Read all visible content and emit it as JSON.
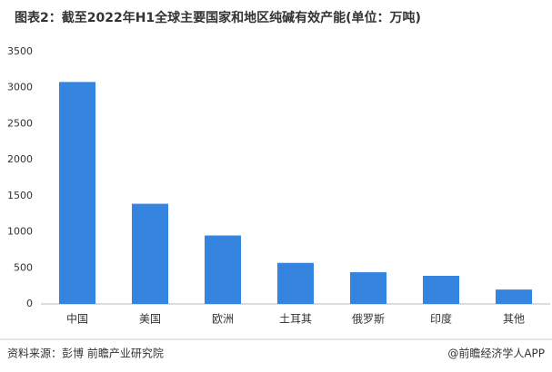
{
  "chart_data": {
    "type": "bar",
    "title": "图表2：截至2022年H1全球主要国家和地区纯碱有效产能(单位：万吨)",
    "categories": [
      "中国",
      "美国",
      "欧洲",
      "土耳其",
      "俄罗斯",
      "印度",
      "其他"
    ],
    "values": [
      3080,
      1390,
      950,
      570,
      440,
      390,
      200
    ],
    "color": "#3484e0",
    "ylim": [
      0,
      3500
    ],
    "yticks": [
      0,
      500,
      1000,
      1500,
      2000,
      2500,
      3000,
      3500
    ],
    "grid": false,
    "source": "资料来源：彭博 前瞻产业研究院",
    "credit": "@前瞻经济学人APP"
  }
}
